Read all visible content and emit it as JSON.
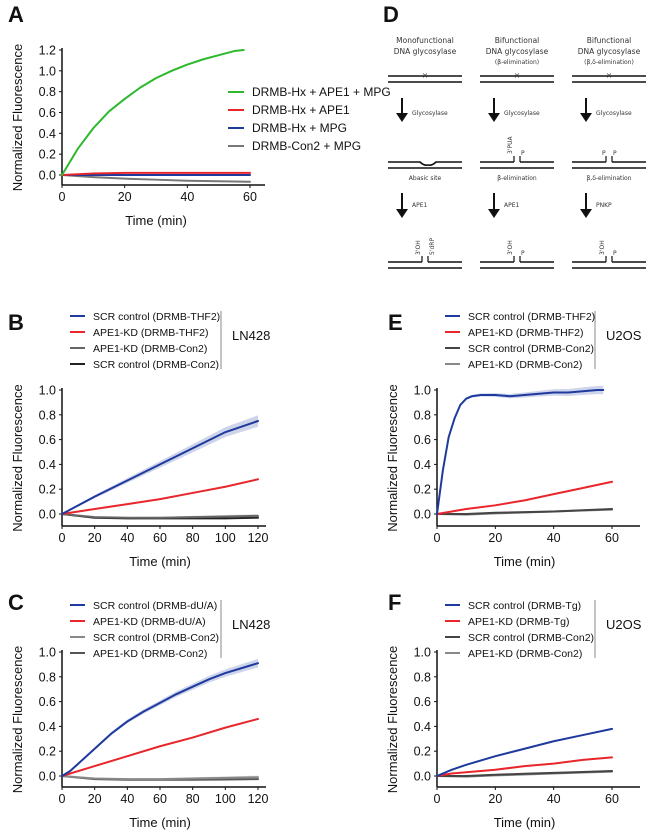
{
  "chart_data": [
    {
      "id": "A",
      "type": "line",
      "panel_label": "A",
      "xlabel": "Time (min)",
      "ylabel": "Normalized Fluorescence",
      "xlim": [
        0,
        60
      ],
      "ylim": [
        -0.1,
        1.2
      ],
      "xticks": [
        0,
        20,
        40,
        60
      ],
      "yticks": [
        0.0,
        0.2,
        0.4,
        0.6,
        0.8,
        1.0,
        1.2
      ],
      "ytick_labels": [
        "0.0",
        "0.2",
        "0.4",
        "0.6",
        "0.8",
        "1.0",
        "1.2"
      ],
      "xtick_labels": [
        "0",
        "20",
        "40",
        "60"
      ],
      "legend_position": "right",
      "cell_line": "",
      "series": [
        {
          "name": "DRMB-Hx + APE1 + MPG",
          "color": "#2db82d",
          "x": [
            0,
            5,
            10,
            15,
            20,
            25,
            30,
            35,
            40,
            45,
            50,
            55,
            58
          ],
          "y": [
            0.0,
            0.25,
            0.45,
            0.61,
            0.73,
            0.84,
            0.93,
            1.0,
            1.06,
            1.11,
            1.15,
            1.19,
            1.2
          ]
        },
        {
          "name": "DRMB-Hx + APE1",
          "color": "#e8262b",
          "x": [
            0,
            10,
            20,
            30,
            40,
            50,
            60
          ],
          "y": [
            0.0,
            0.015,
            0.02,
            0.02,
            0.02,
            0.02,
            0.02
          ]
        },
        {
          "name": "DRMB-Hx + MPG",
          "color": "#1f3a9e",
          "x": [
            0,
            10,
            20,
            30,
            40,
            50,
            60
          ],
          "y": [
            0.0,
            0.0,
            0.0,
            0.0,
            0.0,
            0.0,
            0.0
          ]
        },
        {
          "name": "DRMB-Con2 + MPG",
          "color": "#777777",
          "x": [
            0,
            10,
            20,
            30,
            40,
            50,
            60
          ],
          "y": [
            0.0,
            -0.02,
            -0.035,
            -0.045,
            -0.055,
            -0.06,
            -0.065
          ]
        }
      ]
    },
    {
      "id": "B",
      "type": "line",
      "panel_label": "B",
      "xlabel": "Time (min)",
      "ylabel": "Normalized Fluorescence",
      "xlim": [
        0,
        120
      ],
      "ylim": [
        -0.1,
        1.0
      ],
      "xticks": [
        0,
        20,
        40,
        60,
        80,
        100,
        120
      ],
      "xtick_labels": [
        "0",
        "20",
        "40",
        "60",
        "80",
        "100",
        "120"
      ],
      "yticks": [
        0.0,
        0.2,
        0.4,
        0.6,
        0.8,
        1.0
      ],
      "ytick_labels": [
        "0.0",
        "0.2",
        "0.4",
        "0.6",
        "0.8",
        "1.0"
      ],
      "legend_position": "top",
      "cell_line": "LN428",
      "series": [
        {
          "name": "SCR control (DRMB-THF2)",
          "color": "#1f3a9e",
          "band": 0.04,
          "x": [
            0,
            20,
            40,
            60,
            80,
            100,
            120
          ],
          "y": [
            0.0,
            0.14,
            0.27,
            0.4,
            0.53,
            0.66,
            0.75
          ]
        },
        {
          "name": "APE1-KD (DRMB-THF2)",
          "color": "#e8262b",
          "x": [
            0,
            20,
            40,
            60,
            80,
            100,
            120
          ],
          "y": [
            0.0,
            0.04,
            0.08,
            0.12,
            0.17,
            0.22,
            0.28
          ]
        },
        {
          "name": "APE1-KD (DRMB-Con2)",
          "color": "#666666",
          "band": 0.012,
          "x": [
            0,
            20,
            40,
            60,
            80,
            100,
            120
          ],
          "y": [
            0.0,
            -0.025,
            -0.03,
            -0.03,
            -0.025,
            -0.02,
            -0.015
          ]
        },
        {
          "name": "SCR control (DRMB-Con2)",
          "color": "#222222",
          "x": [
            0,
            20,
            40,
            60,
            80,
            100,
            120
          ],
          "y": [
            0.0,
            -0.03,
            -0.035,
            -0.035,
            -0.035,
            -0.035,
            -0.03
          ]
        }
      ]
    },
    {
      "id": "C",
      "type": "line",
      "panel_label": "C",
      "xlabel": "Time (min)",
      "ylabel": "Normalized Fluorescence",
      "xlim": [
        0,
        120
      ],
      "ylim": [
        -0.1,
        1.0
      ],
      "xticks": [
        0,
        20,
        40,
        60,
        80,
        100,
        120
      ],
      "xtick_labels": [
        "0",
        "20",
        "40",
        "60",
        "80",
        "100",
        "120"
      ],
      "yticks": [
        0.0,
        0.2,
        0.4,
        0.6,
        0.8,
        1.0
      ],
      "ytick_labels": [
        "0.0",
        "0.2",
        "0.4",
        "0.6",
        "0.8",
        "1.0"
      ],
      "legend_position": "top",
      "cell_line": "LN428",
      "series": [
        {
          "name": "SCR control (DRMB-dU/A)",
          "color": "#1f3a9e",
          "band": 0.03,
          "x": [
            0,
            5,
            10,
            20,
            30,
            40,
            50,
            60,
            70,
            80,
            90,
            100,
            110,
            120
          ],
          "y": [
            0.0,
            0.04,
            0.1,
            0.22,
            0.34,
            0.44,
            0.52,
            0.59,
            0.66,
            0.72,
            0.78,
            0.83,
            0.87,
            0.91
          ]
        },
        {
          "name": "APE1-KD (DRMB-dU/A)",
          "color": "#e8262b",
          "x": [
            0,
            20,
            40,
            60,
            80,
            100,
            120
          ],
          "y": [
            0.0,
            0.08,
            0.16,
            0.24,
            0.31,
            0.39,
            0.46
          ]
        },
        {
          "name": "SCR control (DRMB-Con2)",
          "color": "#888888",
          "band": 0.012,
          "x": [
            0,
            20,
            40,
            60,
            80,
            100,
            120
          ],
          "y": [
            0.0,
            -0.02,
            -0.025,
            -0.025,
            -0.02,
            -0.015,
            -0.01
          ]
        },
        {
          "name": "APE1-KD (DRMB-Con2)",
          "color": "#555555",
          "x": [
            0,
            20,
            40,
            60,
            80,
            100,
            120
          ],
          "y": [
            0.0,
            -0.025,
            -0.03,
            -0.03,
            -0.03,
            -0.028,
            -0.025
          ]
        }
      ]
    },
    {
      "id": "E",
      "type": "line",
      "panel_label": "E",
      "xlabel": "Time (min)",
      "ylabel": "Normalized Fluorescence",
      "xlim": [
        0,
        70
      ],
      "ylim": [
        -0.1,
        1.0
      ],
      "xticks": [
        0,
        20,
        40,
        60
      ],
      "xtick_labels": [
        "0",
        "20",
        "40",
        "60"
      ],
      "yticks": [
        0.0,
        0.2,
        0.4,
        0.6,
        0.8,
        1.0
      ],
      "ytick_labels": [
        "0.0",
        "0.2",
        "0.4",
        "0.6",
        "0.8",
        "1.0"
      ],
      "legend_position": "top",
      "cell_line": "U2OS",
      "series": [
        {
          "name": "SCR control (DRMB-THF2)",
          "color": "#1f3a9e",
          "band": 0.03,
          "x": [
            0,
            2,
            4,
            6,
            8,
            10,
            12,
            15,
            20,
            25,
            30,
            35,
            40,
            45,
            50,
            55,
            57
          ],
          "y": [
            0.0,
            0.35,
            0.62,
            0.77,
            0.88,
            0.93,
            0.95,
            0.96,
            0.96,
            0.95,
            0.96,
            0.97,
            0.98,
            0.98,
            0.99,
            1.0,
            1.0
          ]
        },
        {
          "name": "APE1-KD (DRMB-THF2)",
          "color": "#e8262b",
          "x": [
            0,
            5,
            10,
            20,
            30,
            40,
            50,
            60
          ],
          "y": [
            0.0,
            0.02,
            0.04,
            0.07,
            0.11,
            0.16,
            0.21,
            0.26
          ]
        },
        {
          "name": "SCR control (DRMB-Con2)",
          "color": "#444444",
          "x": [
            0,
            10,
            20,
            30,
            40,
            50,
            60
          ],
          "y": [
            0.0,
            0.0,
            0.01,
            0.015,
            0.02,
            0.03,
            0.04
          ]
        },
        {
          "name": "APE1-KD (DRMB-Con2)",
          "color": "#888888",
          "x": [
            0,
            10,
            20,
            30,
            40,
            50,
            60
          ],
          "y": [
            0.0,
            -0.005,
            0.005,
            0.012,
            0.02,
            0.028,
            0.035
          ]
        }
      ]
    },
    {
      "id": "F",
      "type": "line",
      "panel_label": "F",
      "xlabel": "Time (min)",
      "ylabel": "Normalized Fluorescence",
      "xlim": [
        0,
        70
      ],
      "ylim": [
        -0.1,
        1.0
      ],
      "xticks": [
        0,
        20,
        40,
        60
      ],
      "xtick_labels": [
        "0",
        "20",
        "40",
        "60"
      ],
      "yticks": [
        0.0,
        0.2,
        0.4,
        0.6,
        0.8,
        1.0
      ],
      "ytick_labels": [
        "0.0",
        "0.2",
        "0.4",
        "0.6",
        "0.8",
        "1.0"
      ],
      "legend_position": "top",
      "cell_line": "U2OS",
      "series": [
        {
          "name": "SCR control (DRMB-Tg)",
          "color": "#1f3a9e",
          "x": [
            0,
            5,
            10,
            20,
            30,
            40,
            50,
            60
          ],
          "y": [
            0.0,
            0.05,
            0.09,
            0.16,
            0.22,
            0.28,
            0.33,
            0.38
          ]
        },
        {
          "name": "APE1-KD (DRMB-Tg)",
          "color": "#e8262b",
          "x": [
            0,
            5,
            10,
            20,
            30,
            40,
            50,
            60
          ],
          "y": [
            0.0,
            0.02,
            0.03,
            0.05,
            0.08,
            0.1,
            0.13,
            0.15
          ]
        },
        {
          "name": "SCR control (DRMB-Con2)",
          "color": "#444444",
          "x": [
            0,
            10,
            20,
            30,
            40,
            50,
            60
          ],
          "y": [
            0.0,
            0.0,
            0.01,
            0.018,
            0.025,
            0.032,
            0.04
          ]
        },
        {
          "name": "APE1-KD (DRMB-Con2)",
          "color": "#888888",
          "x": [
            0,
            10,
            20,
            30,
            40,
            50,
            60
          ],
          "y": [
            0.0,
            -0.005,
            0.005,
            0.012,
            0.02,
            0.028,
            0.035
          ]
        }
      ]
    }
  ],
  "diagram": {
    "panel_label": "D",
    "columns": [
      {
        "title_lines": [
          "Monofunctional",
          "DNA glycosylase"
        ],
        "subtitle": "",
        "step1_enzyme": "Glycosylase",
        "intermediate_label": "Abasic site",
        "intermediate_marks": [],
        "step2_enzyme": "APE1",
        "product_marks": [
          "3'OH",
          "5'dRP"
        ]
      },
      {
        "title_lines": [
          "Bifunctional",
          "DNA glycosylase"
        ],
        "subtitle": "(β-elimination)",
        "step1_enzyme": "Glycosylase",
        "intermediate_label": "β-elimination",
        "intermediate_marks": [
          "3'PUA",
          "P"
        ],
        "step2_enzyme": "APE1",
        "product_marks": [
          "3'OH",
          "P"
        ]
      },
      {
        "title_lines": [
          "Bifunctional",
          "DNA glycosylase"
        ],
        "subtitle": "(β,δ-elimination)",
        "step1_enzyme": "Glycosylase",
        "intermediate_label": "β,δ-elimination",
        "intermediate_marks": [
          "P",
          "P"
        ],
        "step2_enzyme": "PNKP",
        "product_marks": [
          "3'OH",
          "P"
        ]
      }
    ],
    "lesion_glyph": "×"
  }
}
